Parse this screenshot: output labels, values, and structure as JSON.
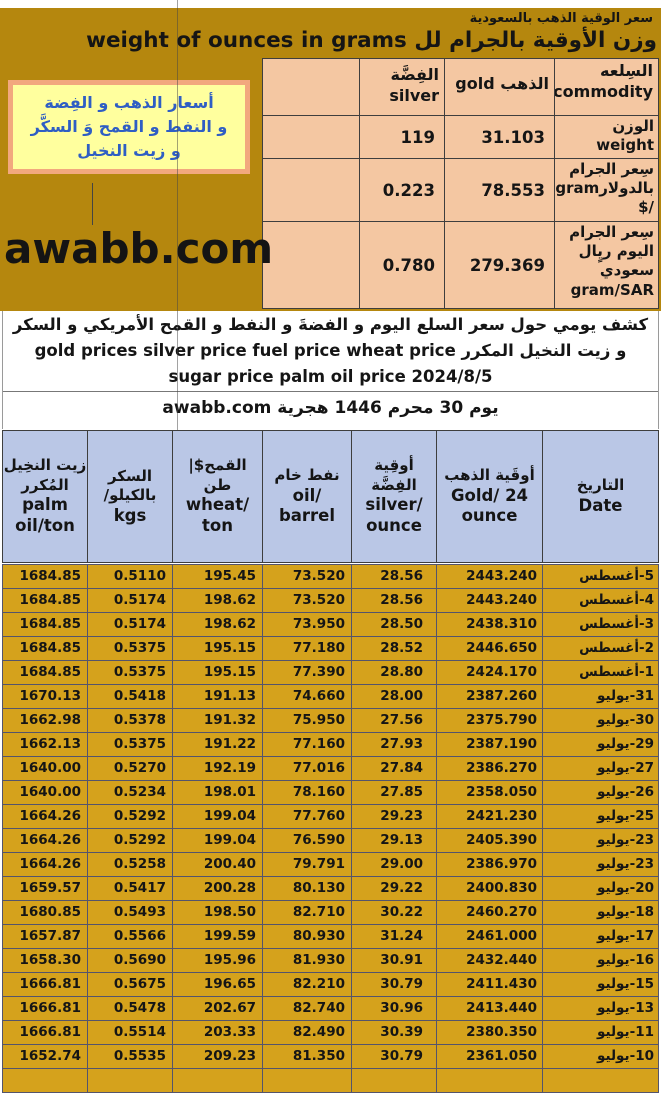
{
  "sheet": {
    "title": "سعر الوقية الذهب بالسعودية",
    "subtitle": "وزن الأوقية بالجرام لل weight of ounces in grams",
    "note": "أسعار الذهب و الفِضة\nو النفط و القمح وَ السكَّر\nو زيت النخيل",
    "site": "awabb.com",
    "description": "كشف يومي حول  سعر السلع اليوم و الفضةَ و النفط و القمح الأمريكي و السكر و زيت النخيل المكرر gold prices silver price fuel price wheat price sugar price palm oil price 2024/8/5",
    "hijri_line": "يوم  30 محرم 1446 هجرية  awabb.com"
  },
  "ounce_table": {
    "rows": [
      [
        "",
        "الفِضَّة silver",
        "الذهب gold",
        "السِلعه commodity"
      ],
      [
        "",
        "119",
        "31.103",
        "الوزن weight"
      ],
      [
        "",
        "0.223",
        "78.553",
        "سِعر الجرام بالدولارgram /$"
      ],
      [
        "",
        "0.780",
        "279.369",
        "سِعر الجرام اليوم ريٍال سعودي gram/SAR"
      ]
    ]
  },
  "price_table": {
    "headers": [
      {
        "ar": "زيت النخِيل المُكرر",
        "en": "palm oil/ton"
      },
      {
        "ar": "السكر بالكيلو/",
        "en": "kgs"
      },
      {
        "ar": "القمح$| طن",
        "en": "wheat/ ton"
      },
      {
        "ar": "نفط خام",
        "en": "oil/ barrel"
      },
      {
        "ar": "أوقِية الفِضَّة",
        "en": "silver/ ounce"
      },
      {
        "ar": "أوقَية الذهب",
        "en": "Gold/ 24 ounce"
      },
      {
        "ar": "التاريخ",
        "en": "Date"
      }
    ],
    "rows": [
      [
        "1684.85",
        "0.5110",
        "195.45",
        "73.520",
        "28.56",
        "2443.240",
        "5-أغسطس"
      ],
      [
        "1684.85",
        "0.5174",
        "198.62",
        "73.520",
        "28.56",
        "2443.240",
        "4-أغسطس"
      ],
      [
        "1684.85",
        "0.5174",
        "198.62",
        "73.950",
        "28.50",
        "2438.310",
        "3-أغسطس"
      ],
      [
        "1684.85",
        "0.5375",
        "195.15",
        "77.180",
        "28.52",
        "2446.650",
        "2-أغسطس"
      ],
      [
        "1684.85",
        "0.5375",
        "195.15",
        "77.390",
        "28.80",
        "2424.170",
        "1-أغسطس"
      ],
      [
        "1670.13",
        "0.5418",
        "191.13",
        "74.660",
        "28.00",
        "2387.260",
        "31-يوليو"
      ],
      [
        "1662.98",
        "0.5378",
        "191.32",
        "75.950",
        "27.56",
        "2375.790",
        "30-يوليو"
      ],
      [
        "1662.13",
        "0.5375",
        "191.22",
        "77.160",
        "27.93",
        "2387.190",
        "29-يوليو"
      ],
      [
        "1640.00",
        "0.5270",
        "192.19",
        "77.016",
        "27.84",
        "2386.270",
        "27-يوليو"
      ],
      [
        "1640.00",
        "0.5234",
        "198.01",
        "78.160",
        "27.85",
        "2358.050",
        "26-يوليو"
      ],
      [
        "1664.26",
        "0.5292",
        "199.04",
        "77.760",
        "29.23",
        "2421.230",
        "25-يوليو"
      ],
      [
        "1664.26",
        "0.5292",
        "199.04",
        "76.590",
        "29.13",
        "2405.390",
        "23-يوليو"
      ],
      [
        "1664.26",
        "0.5258",
        "200.40",
        "79.791",
        "29.00",
        "2386.970",
        "23-يوليو"
      ],
      [
        "1659.57",
        "0.5417",
        "200.28",
        "80.130",
        "29.22",
        "2400.830",
        "20-يوليو"
      ],
      [
        "1680.85",
        "0.5493",
        "198.50",
        "82.710",
        "30.22",
        "2460.270",
        "18-يوليو"
      ],
      [
        "1657.87",
        "0.5566",
        "199.59",
        "80.930",
        "31.24",
        "2461.000",
        "17-يوليو"
      ],
      [
        "1658.30",
        "0.5690",
        "195.96",
        "81.930",
        "30.91",
        "2432.440",
        "16-يوليو"
      ],
      [
        "1666.81",
        "0.5675",
        "196.65",
        "82.210",
        "30.79",
        "2411.430",
        "15-يوليو"
      ],
      [
        "1666.81",
        "0.5478",
        "202.67",
        "82.740",
        "30.96",
        "2413.440",
        "13-يوليو"
      ],
      [
        "1666.81",
        "0.5514",
        "203.33",
        "82.490",
        "30.39",
        "2380.350",
        "11-يوليو"
      ],
      [
        "1652.74",
        "0.5535",
        "209.23",
        "81.350",
        "30.79",
        "2361.050",
        "10-يوليو"
      ]
    ]
  },
  "colors": {
    "banner": "#b5870e",
    "cell_peach": "#f4c7a2",
    "note_fill": "#ffff9e",
    "note_border": "#f2a87e",
    "note_text": "#2f5ec4",
    "header_blue": "#bac7e6",
    "row_gold": "#d5a21c"
  }
}
